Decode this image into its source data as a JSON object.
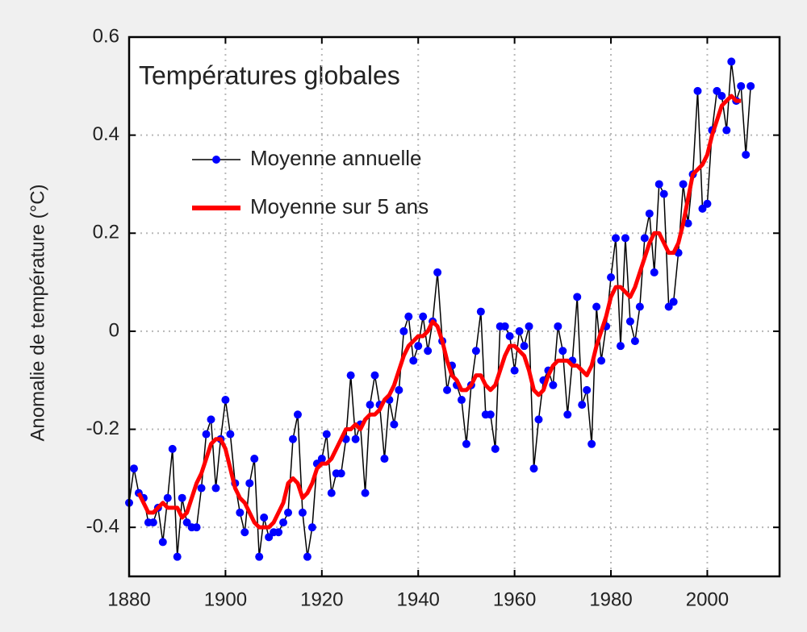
{
  "chart_data": {
    "type": "line",
    "title": "Températures globales",
    "y_label": "Anomalie de température (°C)",
    "xlim": [
      1880,
      2015
    ],
    "xticks": [
      1880,
      1900,
      1920,
      1940,
      1960,
      1980,
      2000
    ],
    "ylim": [
      -0.5,
      0.6
    ],
    "yticks": [
      -0.4,
      -0.2,
      0,
      0.2,
      0.4,
      0.6
    ],
    "grid": true,
    "legend": "upper left",
    "series": [
      {
        "name": "Moyenne annuelle",
        "color": "#0000ff",
        "line_color": "#000000",
        "markers": true,
        "x": [
          1880,
          1881,
          1882,
          1883,
          1884,
          1885,
          1886,
          1887,
          1888,
          1889,
          1890,
          1891,
          1892,
          1893,
          1894,
          1895,
          1896,
          1897,
          1898,
          1899,
          1900,
          1901,
          1902,
          1903,
          1904,
          1905,
          1906,
          1907,
          1908,
          1909,
          1910,
          1911,
          1912,
          1913,
          1914,
          1915,
          1916,
          1917,
          1918,
          1919,
          1920,
          1921,
          1922,
          1923,
          1924,
          1925,
          1926,
          1927,
          1928,
          1929,
          1930,
          1931,
          1932,
          1933,
          1934,
          1935,
          1936,
          1937,
          1938,
          1939,
          1940,
          1941,
          1942,
          1943,
          1944,
          1945,
          1946,
          1947,
          1948,
          1949,
          1950,
          1951,
          1952,
          1953,
          1954,
          1955,
          1956,
          1957,
          1958,
          1959,
          1960,
          1961,
          1962,
          1963,
          1964,
          1965,
          1966,
          1967,
          1968,
          1969,
          1970,
          1971,
          1972,
          1973,
          1974,
          1975,
          1976,
          1977,
          1978,
          1979,
          1980,
          1981,
          1982,
          1983,
          1984,
          1985,
          1986,
          1987,
          1988,
          1989,
          1990,
          1991,
          1992,
          1993,
          1994,
          1995,
          1996,
          1997,
          1998,
          1999,
          2000,
          2001,
          2002,
          2003,
          2004,
          2005,
          2006,
          2007,
          2008,
          2009
        ],
        "values": [
          -0.35,
          -0.28,
          -0.33,
          -0.34,
          -0.39,
          -0.39,
          -0.36,
          -0.43,
          -0.34,
          -0.24,
          -0.46,
          -0.34,
          -0.39,
          -0.4,
          -0.4,
          -0.32,
          -0.21,
          -0.18,
          -0.32,
          -0.22,
          -0.14,
          -0.21,
          -0.31,
          -0.37,
          -0.41,
          -0.31,
          -0.26,
          -0.46,
          -0.38,
          -0.42,
          -0.41,
          -0.41,
          -0.39,
          -0.37,
          -0.22,
          -0.17,
          -0.37,
          -0.46,
          -0.4,
          -0.27,
          -0.26,
          -0.21,
          -0.33,
          -0.29,
          -0.29,
          -0.22,
          -0.09,
          -0.22,
          -0.19,
          -0.33,
          -0.15,
          -0.09,
          -0.15,
          -0.26,
          -0.14,
          -0.19,
          -0.12,
          0.0,
          0.03,
          -0.06,
          -0.03,
          0.03,
          -0.04,
          0.02,
          0.12,
          -0.02,
          -0.12,
          -0.07,
          -0.11,
          -0.14,
          -0.23,
          -0.11,
          -0.04,
          0.04,
          -0.17,
          -0.17,
          -0.24,
          0.01,
          0.01,
          -0.01,
          -0.08,
          0.0,
          -0.03,
          0.01,
          -0.28,
          -0.18,
          -0.1,
          -0.08,
          -0.11,
          0.01,
          -0.04,
          -0.17,
          -0.06,
          0.07,
          -0.15,
          -0.12,
          -0.23,
          0.05,
          -0.06,
          0.01,
          0.11,
          0.19,
          -0.03,
          0.19,
          0.02,
          -0.02,
          0.05,
          0.19,
          0.24,
          0.12,
          0.3,
          0.28,
          0.05,
          0.06,
          0.16,
          0.3,
          0.22,
          0.32,
          0.49,
          0.25,
          0.26,
          0.41,
          0.49,
          0.48,
          0.41,
          0.55,
          0.47,
          0.5,
          0.36,
          0.5
        ]
      },
      {
        "name": "Moyenne sur 5 ans",
        "color": "#ff0000",
        "markers": false,
        "x": [
          1882,
          1883,
          1884,
          1885,
          1886,
          1887,
          1888,
          1889,
          1890,
          1891,
          1892,
          1893,
          1894,
          1895,
          1896,
          1897,
          1898,
          1899,
          1900,
          1901,
          1902,
          1903,
          1904,
          1905,
          1906,
          1907,
          1908,
          1909,
          1910,
          1911,
          1912,
          1913,
          1914,
          1915,
          1916,
          1917,
          1918,
          1919,
          1920,
          1921,
          1922,
          1923,
          1924,
          1925,
          1926,
          1927,
          1928,
          1929,
          1930,
          1931,
          1932,
          1933,
          1934,
          1935,
          1936,
          1937,
          1938,
          1939,
          1940,
          1941,
          1942,
          1943,
          1944,
          1945,
          1946,
          1947,
          1948,
          1949,
          1950,
          1951,
          1952,
          1953,
          1954,
          1955,
          1956,
          1957,
          1958,
          1959,
          1960,
          1961,
          1962,
          1963,
          1964,
          1965,
          1966,
          1967,
          1968,
          1969,
          1970,
          1971,
          1972,
          1973,
          1974,
          1975,
          1976,
          1977,
          1978,
          1979,
          1980,
          1981,
          1982,
          1983,
          1984,
          1985,
          1986,
          1987,
          1988,
          1989,
          1990,
          1991,
          1992,
          1993,
          1994,
          1995,
          1996,
          1997,
          1998,
          1999,
          2000,
          2001,
          2002,
          2003,
          2004,
          2005,
          2006,
          2007
        ],
        "values": [
          -0.33,
          -0.35,
          -0.37,
          -0.37,
          -0.36,
          -0.35,
          -0.36,
          -0.36,
          -0.36,
          -0.38,
          -0.37,
          -0.34,
          -0.31,
          -0.29,
          -0.26,
          -0.23,
          -0.22,
          -0.22,
          -0.24,
          -0.28,
          -0.32,
          -0.34,
          -0.35,
          -0.37,
          -0.39,
          -0.4,
          -0.4,
          -0.4,
          -0.39,
          -0.37,
          -0.35,
          -0.31,
          -0.3,
          -0.31,
          -0.34,
          -0.33,
          -0.31,
          -0.28,
          -0.27,
          -0.27,
          -0.26,
          -0.24,
          -0.22,
          -0.2,
          -0.2,
          -0.19,
          -0.2,
          -0.18,
          -0.17,
          -0.17,
          -0.16,
          -0.14,
          -0.13,
          -0.11,
          -0.08,
          -0.05,
          -0.03,
          -0.02,
          -0.01,
          -0.01,
          0.0,
          0.02,
          0.01,
          -0.02,
          -0.06,
          -0.09,
          -0.1,
          -0.12,
          -0.12,
          -0.11,
          -0.09,
          -0.09,
          -0.11,
          -0.12,
          -0.11,
          -0.08,
          -0.05,
          -0.03,
          -0.03,
          -0.04,
          -0.05,
          -0.08,
          -0.12,
          -0.13,
          -0.12,
          -0.09,
          -0.07,
          -0.06,
          -0.06,
          -0.06,
          -0.07,
          -0.07,
          -0.08,
          -0.09,
          -0.07,
          -0.03,
          0.0,
          0.03,
          0.07,
          0.09,
          0.09,
          0.08,
          0.07,
          0.09,
          0.12,
          0.15,
          0.18,
          0.2,
          0.2,
          0.18,
          0.16,
          0.16,
          0.18,
          0.22,
          0.27,
          0.32,
          0.33,
          0.34,
          0.36,
          0.4,
          0.43,
          0.46,
          0.47,
          0.48,
          0.47,
          0.47
        ]
      }
    ]
  }
}
